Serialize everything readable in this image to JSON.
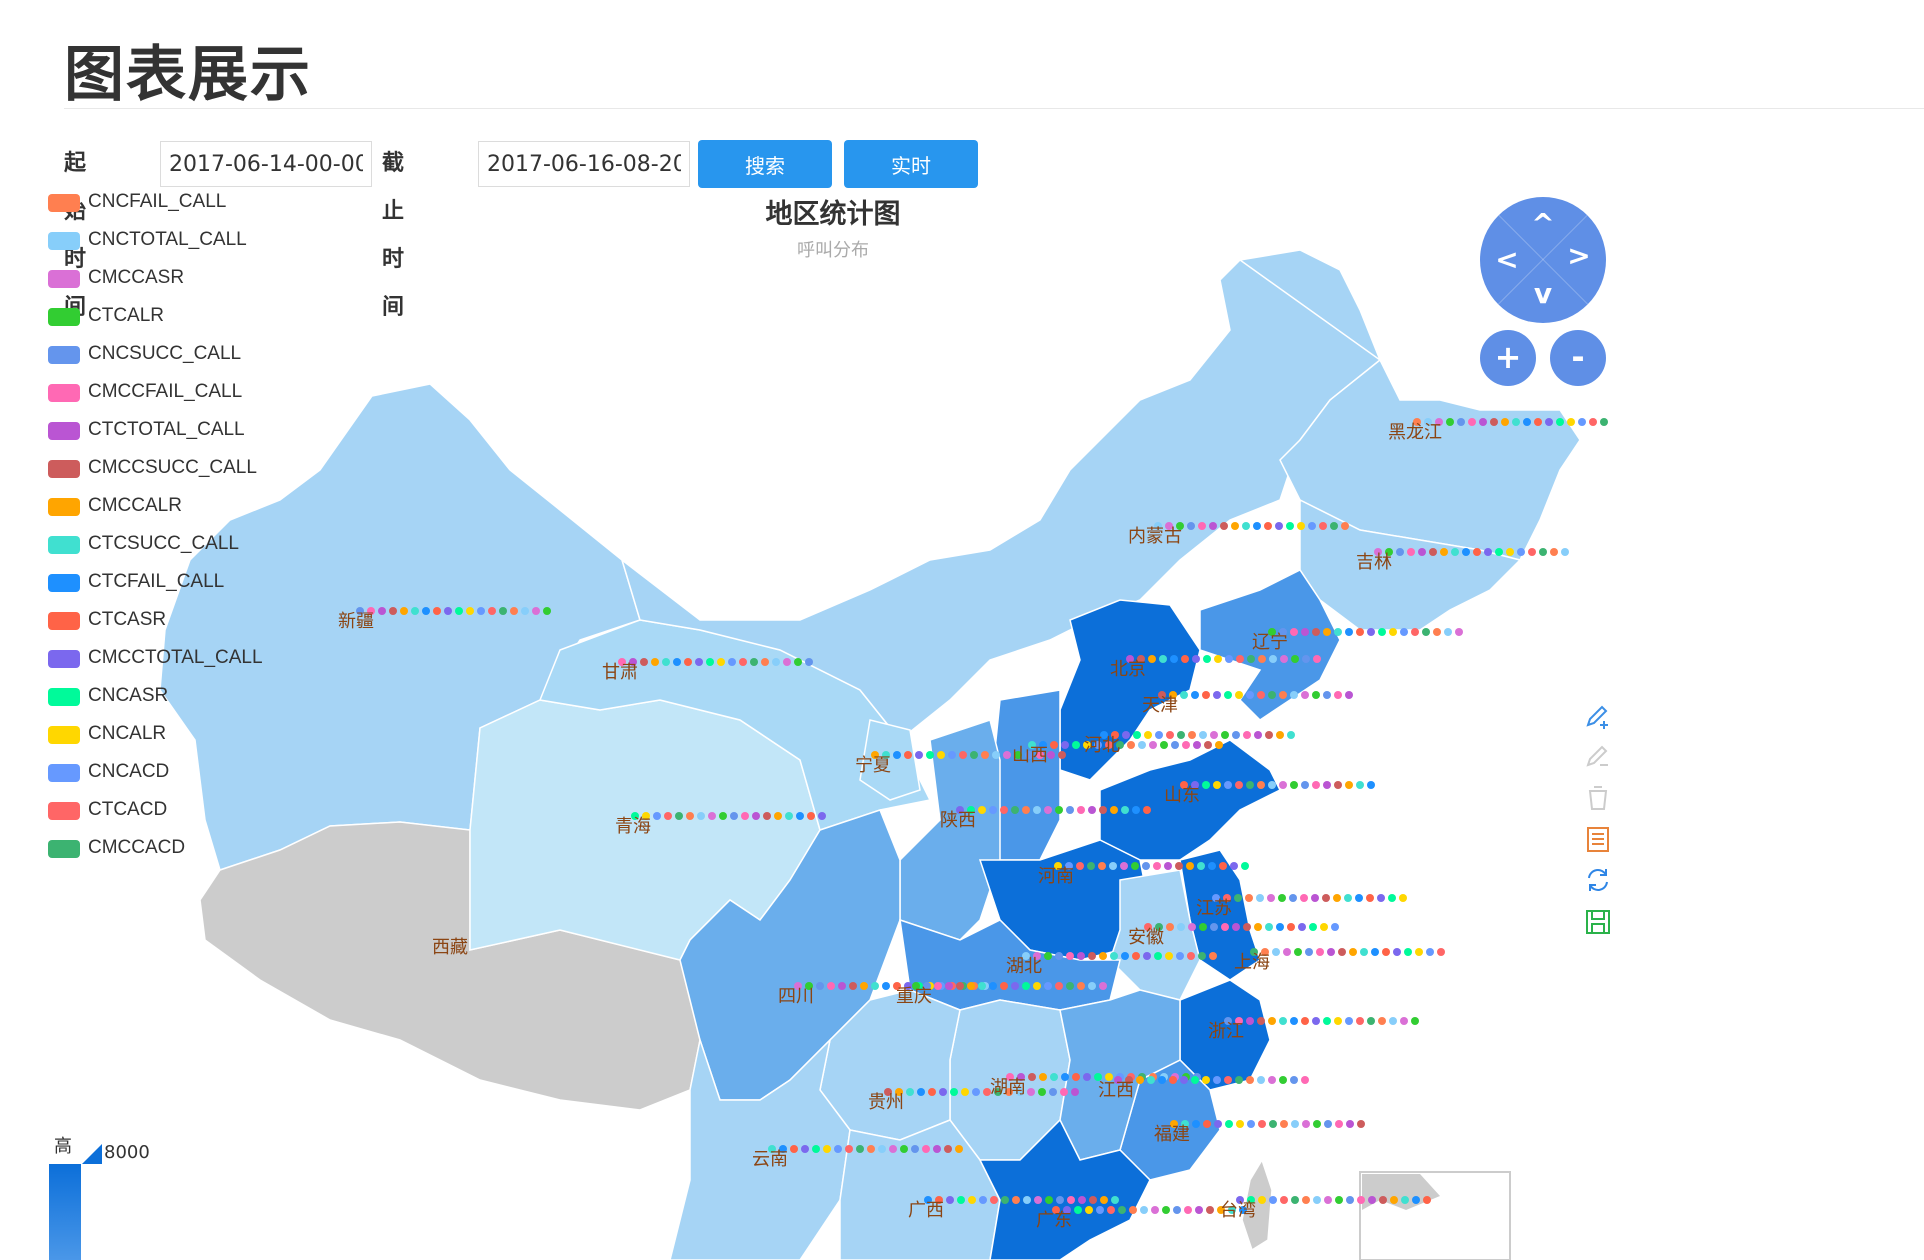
{
  "page": {
    "title": "图表展示"
  },
  "search": {
    "start_label": "起始时间",
    "start_value": "2017-06-14-00-00",
    "end_label": "截止时间",
    "end_value": "2017-06-16-08-20",
    "search_button": "搜索",
    "realtime_button": "实时"
  },
  "chart": {
    "title": "地区统计图",
    "subtitle": "呼叫分布",
    "legend": [
      {
        "label": "CNCFAIL_CALL",
        "color": "#ff7f50"
      },
      {
        "label": "CNCTOTAL_CALL",
        "color": "#87cefa"
      },
      {
        "label": "CMCCASR",
        "color": "#da70d6"
      },
      {
        "label": "CTCALR",
        "color": "#32cd32"
      },
      {
        "label": "CNCSUCC_CALL",
        "color": "#6495ed"
      },
      {
        "label": "CMCCFAIL_CALL",
        "color": "#ff69b4"
      },
      {
        "label": "CTCTOTAL_CALL",
        "color": "#ba55d3"
      },
      {
        "label": "CMCCSUCC_CALL",
        "color": "#cd5c5c"
      },
      {
        "label": "CMCCALR",
        "color": "#ffa500"
      },
      {
        "label": "CTCSUCC_CALL",
        "color": "#40e0d0"
      },
      {
        "label": "CTCFAIL_CALL",
        "color": "#1e90ff"
      },
      {
        "label": "CTCASR",
        "color": "#ff6347"
      },
      {
        "label": "CMCCTOTAL_CALL",
        "color": "#7b68ee"
      },
      {
        "label": "CNCASR",
        "color": "#00fa9a"
      },
      {
        "label": "CNCALR",
        "color": "#ffd700"
      },
      {
        "label": "CNCACD",
        "color": "#6699ff"
      },
      {
        "label": "CTCACD",
        "color": "#ff6666"
      },
      {
        "label": "CMCCACD",
        "color": "#3cb371"
      }
    ],
    "provinces": [
      "黑龙江",
      "内蒙古",
      "吉林",
      "辽宁",
      "新疆",
      "甘肃",
      "北京",
      "天津",
      "宁夏",
      "山西",
      "河北",
      "山东",
      "陕西",
      "青海",
      "河南",
      "江苏",
      "安徽",
      "上海",
      "西藏",
      "湖北",
      "四川",
      "重庆",
      "浙江",
      "湖南",
      "江西",
      "贵州",
      "福建",
      "云南",
      "广西",
      "广东",
      "台湾"
    ],
    "visual_map": {
      "high_label": "高",
      "max": "8000"
    }
  },
  "controls": {
    "nav": {
      "up": "^",
      "left": "<",
      "right": ">",
      "down": "v"
    },
    "zoom_in": "+",
    "zoom_out": "-"
  },
  "colors": {
    "accent": "#2896ee",
    "nav_button": "#5f8fe6",
    "region_dark": "#0c6fd9",
    "region_medium": "#4a97e8",
    "region_light": "#a6d4f5",
    "region_no_data": "#cccccc"
  }
}
